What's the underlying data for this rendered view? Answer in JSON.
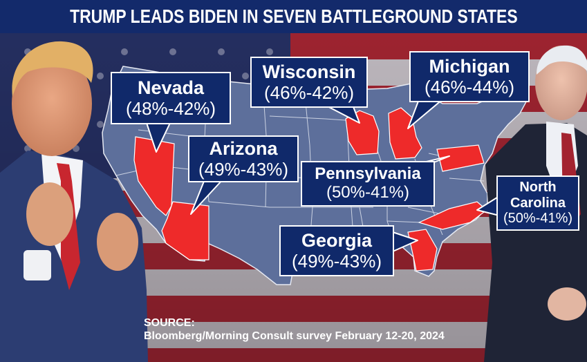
{
  "title": "TRUMP LEADS BIDEN IN SEVEN BATTLEGROUND STATES",
  "colors": {
    "header": "#132a6b",
    "callout_bg": "#10296a",
    "state_highlight": "#ee2a2a",
    "map_base": "#5d6f9b"
  },
  "states": [
    {
      "name": "Nevada",
      "result": "(48%-42%)"
    },
    {
      "name": "Wisconsin",
      "result": "(46%-42%)"
    },
    {
      "name": "Michigan",
      "result": "(46%-44%)"
    },
    {
      "name": "Arizona",
      "result": "(49%-43%)"
    },
    {
      "name": "Pennsylvania",
      "result": "(50%-41%)"
    },
    {
      "name": "North Carolina",
      "name_line1": "North",
      "name_line2": "Carolina",
      "result": "(50%-41%)"
    },
    {
      "name": "Georgia",
      "result": "(49%-43%)"
    }
  ],
  "source": {
    "label": "SOURCE:",
    "text": "Bloomberg/Morning Consult survey February 12-20, 2024"
  }
}
